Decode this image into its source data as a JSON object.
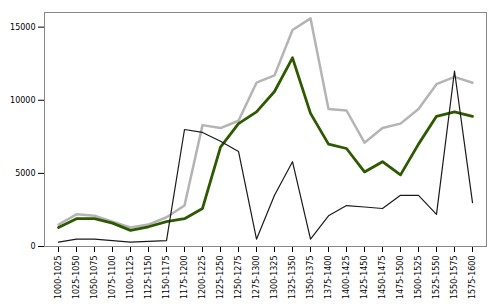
{
  "chart_data": {
    "type": "line",
    "categories": [
      "1000-1025",
      "1025-1050",
      "1050-1075",
      "1075-1100",
      "1100-1125",
      "1125-1150",
      "1150-1175",
      "1175-1200",
      "1200-1225",
      "1225-1250",
      "1250-1275",
      "1275-1300",
      "1300-1325",
      "1325-1350",
      "1350-1375",
      "1375-1400",
      "1400-1425",
      "1425-1450",
      "1450-1475",
      "1475-1500",
      "1500-1525",
      "1525-1550",
      "1550-1575",
      "1575-1600"
    ],
    "series": [
      {
        "color": "#b4b4b4",
        "values": [
          1500,
          2200,
          2100,
          1700,
          1300,
          1500,
          2000,
          2800,
          8300,
          8100,
          8600,
          11200,
          11700,
          14800,
          15600,
          9400,
          9300,
          7100,
          8100,
          8400,
          9400,
          11100,
          11600,
          11200
        ]
      },
      {
        "color": "#2d5a00",
        "values": [
          1300,
          1900,
          1900,
          1600,
          1100,
          1350,
          1700,
          1900,
          2600,
          6800,
          8400,
          9200,
          10600,
          12900,
          9100,
          7000,
          6700,
          5100,
          5800,
          4900,
          7000,
          8900,
          9200,
          8900
        ]
      },
      {
        "color": "#1a1a1a",
        "values": [
          300,
          500,
          500,
          400,
          300,
          350,
          400,
          8000,
          7800,
          7200,
          6500,
          500,
          3500,
          5800,
          500,
          2100,
          2800,
          2700,
          2600,
          3500,
          3500,
          2200,
          12000,
          3000
        ]
      }
    ],
    "ylim": [
      0,
      16000
    ],
    "yticks": [
      0,
      5000,
      10000,
      15000
    ],
    "grid": false
  }
}
